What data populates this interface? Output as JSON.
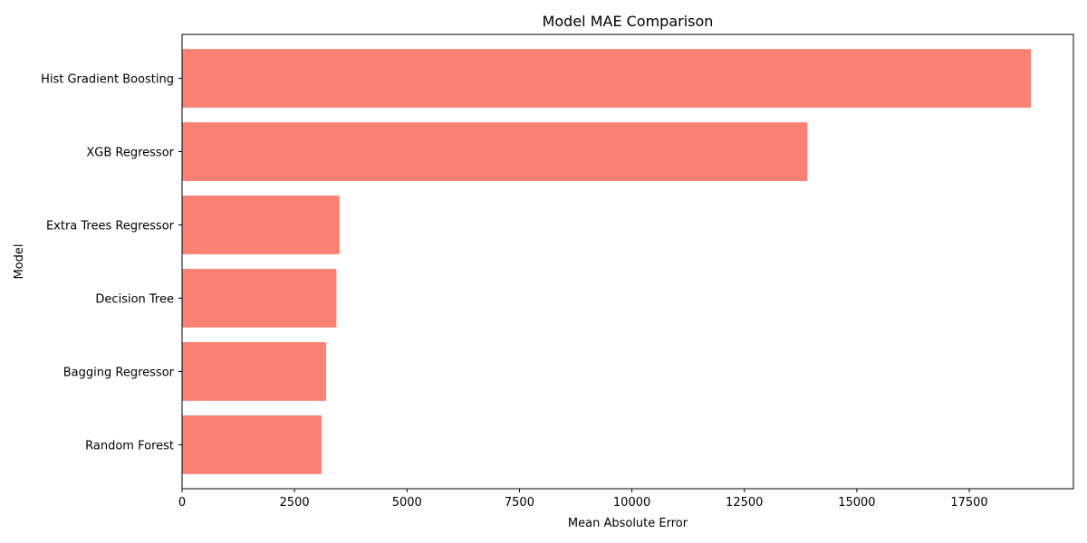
{
  "chart_data": {
    "type": "bar",
    "orientation": "horizontal",
    "title": "Model MAE Comparison",
    "xlabel": "Mean Absolute Error",
    "ylabel": "Model",
    "categories": [
      "Random Forest",
      "Bagging Regressor",
      "Decision Tree",
      "Extra Trees Regressor",
      "XGB Regressor",
      "Hist Gradient Boosting"
    ],
    "values": [
      3100,
      3200,
      3430,
      3500,
      13900,
      18870
    ],
    "xlim": [
      0,
      19815
    ],
    "xticks": [
      0,
      2500,
      5000,
      7500,
      10000,
      12500,
      15000,
      17500
    ],
    "grid": false,
    "bar_color": "#fa8072"
  }
}
